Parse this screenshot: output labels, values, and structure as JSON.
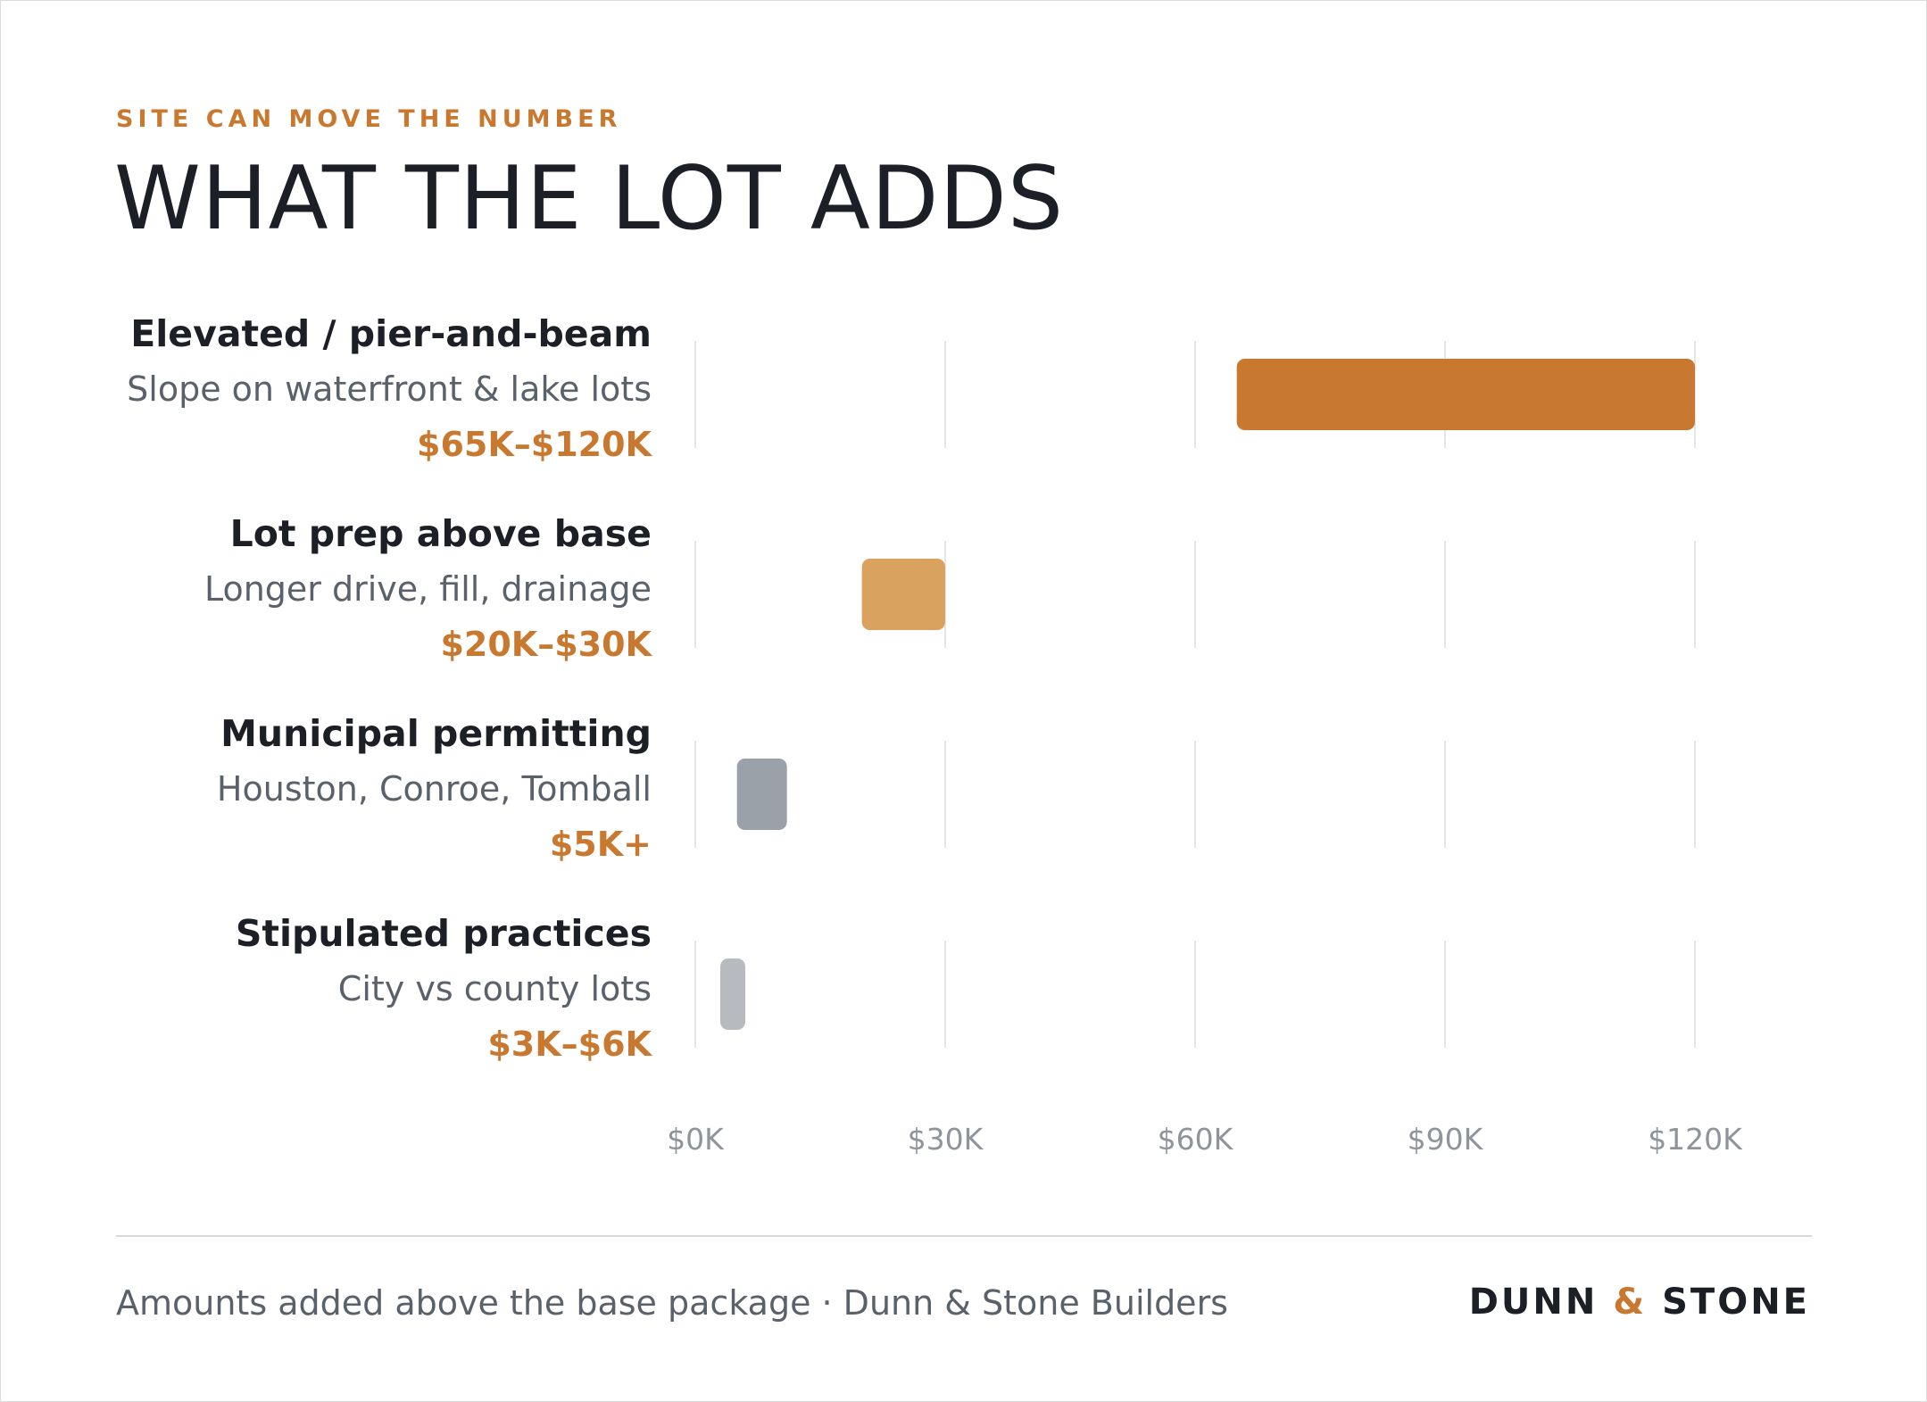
{
  "header": {
    "eyebrow": "SITE CAN MOVE THE NUMBER",
    "title": "WHAT THE LOT ADDS"
  },
  "footer": {
    "note": "Amounts added above the base package · Dunn & Stone Builders",
    "brand_left": "DUNN",
    "brand_amp": "&",
    "brand_right": "STONE"
  },
  "colors": {
    "accent": "#c8792f",
    "accent_light": "#d9a25e",
    "gray_dark": "#9ba1a9",
    "gray_light": "#b7bbc0",
    "text_dark": "#1c1f26",
    "text_muted": "#5b616b",
    "tick_text": "#8f949b",
    "grid": "#e6e6e6"
  },
  "chart_data": {
    "type": "bar",
    "orientation": "horizontal-range",
    "xlim": [
      0,
      120
    ],
    "x_unit": "thousands of dollars",
    "ticks": [
      0,
      30,
      60,
      90,
      120
    ],
    "tick_labels": [
      "$0K",
      "$30K",
      "$60K",
      "$90K",
      "$120K"
    ],
    "grid": true,
    "rows": [
      {
        "name": "Elevated / pier-and-beam",
        "sub": "Slope on waterfront & lake lots",
        "range_label": "$65K–$120K",
        "start": 65,
        "end": 120,
        "color": "#c8792f"
      },
      {
        "name": "Lot prep above base",
        "sub": "Longer drive, fill, drainage",
        "range_label": "$20K–$30K",
        "start": 20,
        "end": 30,
        "color": "#d9a25e"
      },
      {
        "name": "Municipal permitting",
        "sub": "Houston, Conroe, Tomball",
        "range_label": "$5K+",
        "start": 5,
        "end": 11,
        "color": "#9ba1a9"
      },
      {
        "name": "Stipulated practices",
        "sub": "City vs county lots",
        "range_label": "$3K–$6K",
        "start": 3,
        "end": 6,
        "color": "#b7bbc0"
      }
    ]
  }
}
